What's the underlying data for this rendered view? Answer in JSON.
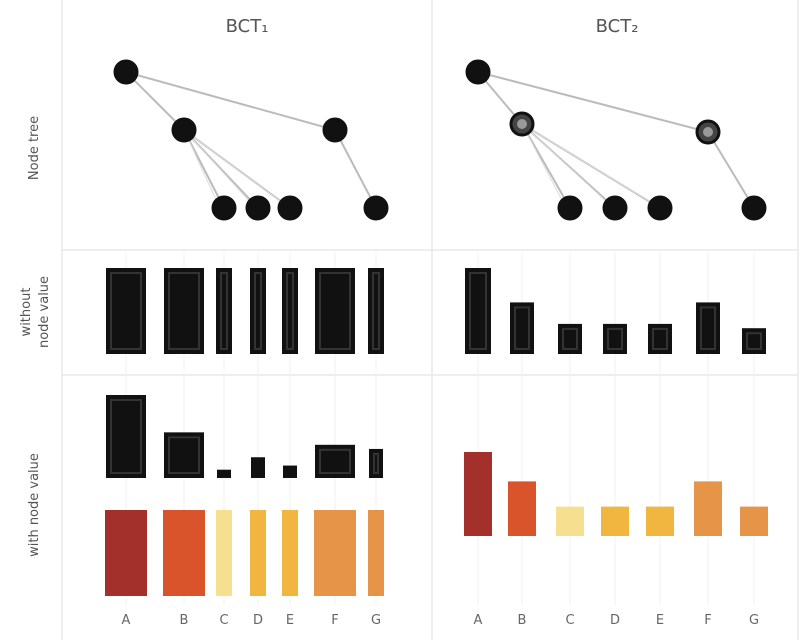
{
  "columns": [
    {
      "title": "BCT₁"
    },
    {
      "title": "BCT₂"
    }
  ],
  "row_labels": {
    "tree": "Node tree",
    "without_line1": "without",
    "without_line2": "node value",
    "with": "with node value"
  },
  "node_names": [
    "A",
    "B",
    "C",
    "D",
    "E",
    "F",
    "G"
  ],
  "tree": {
    "edges": [
      [
        "A",
        "B"
      ],
      [
        "A",
        "F"
      ],
      [
        "B",
        "C"
      ],
      [
        "B",
        "D"
      ],
      [
        "B",
        "E"
      ],
      [
        "F",
        "G"
      ]
    ],
    "bct1_hollow": [],
    "bct2_hollow": [
      "B",
      "F"
    ]
  },
  "bct1_without": [
    {
      "node": "A",
      "width": "wide"
    },
    {
      "node": "B",
      "width": "wide"
    },
    {
      "node": "C",
      "width": "narrow"
    },
    {
      "node": "D",
      "width": "narrow"
    },
    {
      "node": "E",
      "width": "narrow"
    },
    {
      "node": "F",
      "width": "wide"
    },
    {
      "node": "G",
      "width": "narrow"
    }
  ],
  "bct1_with_black": [
    {
      "node": "A",
      "level": 1.0
    },
    {
      "node": "B",
      "level": 0.55
    },
    {
      "node": "C",
      "level": 0.1
    },
    {
      "node": "D",
      "level": 0.25
    },
    {
      "node": "E",
      "level": 0.15
    },
    {
      "node": "F",
      "level": 0.4
    },
    {
      "node": "G",
      "level": 0.35
    }
  ],
  "bct1_with_color": [
    {
      "node": "A",
      "color": "#a3302a"
    },
    {
      "node": "B",
      "color": "#d9542b"
    },
    {
      "node": "C",
      "color": "#f6df8e"
    },
    {
      "node": "D",
      "color": "#f0b63f"
    },
    {
      "node": "E",
      "color": "#f0b63f"
    },
    {
      "node": "F",
      "color": "#e69447"
    },
    {
      "node": "G",
      "color": "#e69447"
    }
  ],
  "bct2_without": [
    {
      "node": "A",
      "level": 1.0
    },
    {
      "node": "B",
      "level": 0.6
    },
    {
      "node": "C",
      "level": 0.35
    },
    {
      "node": "D",
      "level": 0.35
    },
    {
      "node": "E",
      "level": 0.35
    },
    {
      "node": "F",
      "level": 0.6
    },
    {
      "node": "G",
      "level": 0.3
    }
  ],
  "bct2_with": [
    {
      "node": "A",
      "level": 1.0,
      "color": "#a3302a"
    },
    {
      "node": "B",
      "level": 0.65,
      "color": "#d9542b"
    },
    {
      "node": "C",
      "level": 0.35,
      "color": "#f6df8e"
    },
    {
      "node": "D",
      "level": 0.35,
      "color": "#f0b63f"
    },
    {
      "node": "E",
      "level": 0.35,
      "color": "#f0b63f"
    },
    {
      "node": "F",
      "level": 0.65,
      "color": "#e69447"
    },
    {
      "node": "G",
      "level": 0.35,
      "color": "#e69447"
    }
  ],
  "colors": {
    "black": "#111111",
    "edge": "#bbbbbb",
    "grid": "#e8e8e8"
  }
}
